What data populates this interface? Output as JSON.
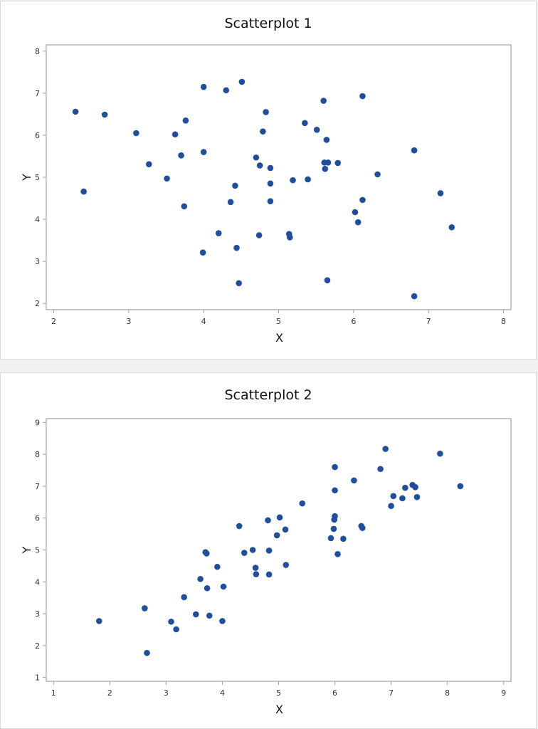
{
  "chart_data": [
    {
      "type": "scatter",
      "title": "Scatterplot 1",
      "xlabel": "X",
      "ylabel": "Y",
      "xlim": [
        1.9,
        8.1
      ],
      "ylim": [
        1.85,
        8.15
      ],
      "xticks": [
        2,
        3,
        4,
        5,
        6,
        7,
        8
      ],
      "yticks": [
        2,
        3,
        4,
        5,
        6,
        7,
        8
      ],
      "grid": false,
      "legend": null,
      "marker_color": "#1f4e9c",
      "points": [
        [
          2.29,
          6.56
        ],
        [
          2.4,
          4.66
        ],
        [
          2.68,
          6.49
        ],
        [
          3.1,
          6.05
        ],
        [
          3.27,
          5.31
        ],
        [
          3.51,
          4.97
        ],
        [
          3.62,
          6.02
        ],
        [
          3.7,
          5.52
        ],
        [
          3.74,
          4.31
        ],
        [
          3.76,
          6.35
        ],
        [
          4.0,
          7.15
        ],
        [
          4.0,
          5.6
        ],
        [
          3.99,
          3.21
        ],
        [
          4.2,
          3.67
        ],
        [
          4.3,
          7.07
        ],
        [
          4.36,
          4.41
        ],
        [
          4.42,
          4.8
        ],
        [
          4.44,
          3.32
        ],
        [
          4.47,
          2.48
        ],
        [
          4.51,
          7.27
        ],
        [
          4.7,
          5.47
        ],
        [
          4.74,
          3.62
        ],
        [
          4.75,
          5.28
        ],
        [
          4.79,
          6.09
        ],
        [
          4.83,
          6.55
        ],
        [
          4.89,
          5.22
        ],
        [
          4.89,
          4.85
        ],
        [
          4.89,
          4.43
        ],
        [
          5.14,
          3.65
        ],
        [
          5.15,
          3.57
        ],
        [
          5.19,
          4.93
        ],
        [
          5.35,
          6.29
        ],
        [
          5.39,
          4.95
        ],
        [
          5.51,
          6.13
        ],
        [
          5.6,
          6.82
        ],
        [
          5.61,
          5.35
        ],
        [
          5.62,
          5.2
        ],
        [
          5.66,
          5.35
        ],
        [
          5.64,
          5.89
        ],
        [
          5.65,
          2.55
        ],
        [
          5.79,
          5.34
        ],
        [
          6.02,
          4.17
        ],
        [
          6.06,
          3.93
        ],
        [
          6.12,
          4.46
        ],
        [
          6.12,
          6.93
        ],
        [
          6.32,
          5.07
        ],
        [
          6.81,
          5.64
        ],
        [
          6.81,
          2.17
        ],
        [
          7.16,
          4.62
        ],
        [
          7.31,
          3.81
        ]
      ]
    },
    {
      "type": "scatter",
      "title": "Scatterplot 2",
      "xlabel": "X",
      "ylabel": "Y",
      "xlim": [
        0.87,
        9.13
      ],
      "ylim": [
        0.88,
        9.12
      ],
      "xticks": [
        1,
        2,
        3,
        4,
        5,
        6,
        7,
        8,
        9
      ],
      "yticks": [
        1,
        2,
        3,
        4,
        5,
        6,
        7,
        8,
        9
      ],
      "grid": false,
      "legend": null,
      "marker_color": "#1f4e9c",
      "points": [
        [
          1.81,
          2.77
        ],
        [
          2.62,
          3.17
        ],
        [
          2.66,
          1.77
        ],
        [
          3.09,
          2.75
        ],
        [
          3.18,
          2.51
        ],
        [
          3.32,
          3.52
        ],
        [
          3.53,
          2.98
        ],
        [
          3.61,
          4.09
        ],
        [
          3.7,
          4.93
        ],
        [
          3.72,
          4.89
        ],
        [
          3.73,
          3.8
        ],
        [
          3.77,
          2.94
        ],
        [
          3.91,
          4.47
        ],
        [
          4.0,
          2.77
        ],
        [
          4.02,
          3.85
        ],
        [
          4.3,
          5.75
        ],
        [
          4.39,
          4.91
        ],
        [
          4.54,
          5.0
        ],
        [
          4.59,
          4.44
        ],
        [
          4.6,
          4.24
        ],
        [
          4.81,
          5.93
        ],
        [
          4.83,
          4.98
        ],
        [
          4.83,
          4.23
        ],
        [
          4.97,
          5.46
        ],
        [
          5.02,
          6.02
        ],
        [
          5.12,
          5.64
        ],
        [
          5.13,
          4.53
        ],
        [
          5.42,
          6.46
        ],
        [
          5.93,
          5.37
        ],
        [
          5.98,
          5.66
        ],
        [
          5.99,
          5.95
        ],
        [
          6.0,
          6.06
        ],
        [
          6.0,
          6.87
        ],
        [
          6.0,
          7.6
        ],
        [
          6.05,
          4.87
        ],
        [
          6.15,
          5.35
        ],
        [
          6.34,
          7.18
        ],
        [
          6.47,
          5.75
        ],
        [
          6.49,
          5.69
        ],
        [
          6.81,
          7.54
        ],
        [
          6.9,
          8.17
        ],
        [
          7.0,
          6.38
        ],
        [
          7.04,
          6.69
        ],
        [
          7.2,
          6.62
        ],
        [
          7.25,
          6.95
        ],
        [
          7.38,
          7.04
        ],
        [
          7.43,
          6.97
        ],
        [
          7.46,
          6.66
        ],
        [
          7.87,
          8.02
        ],
        [
          8.23,
          7.0
        ]
      ]
    }
  ]
}
